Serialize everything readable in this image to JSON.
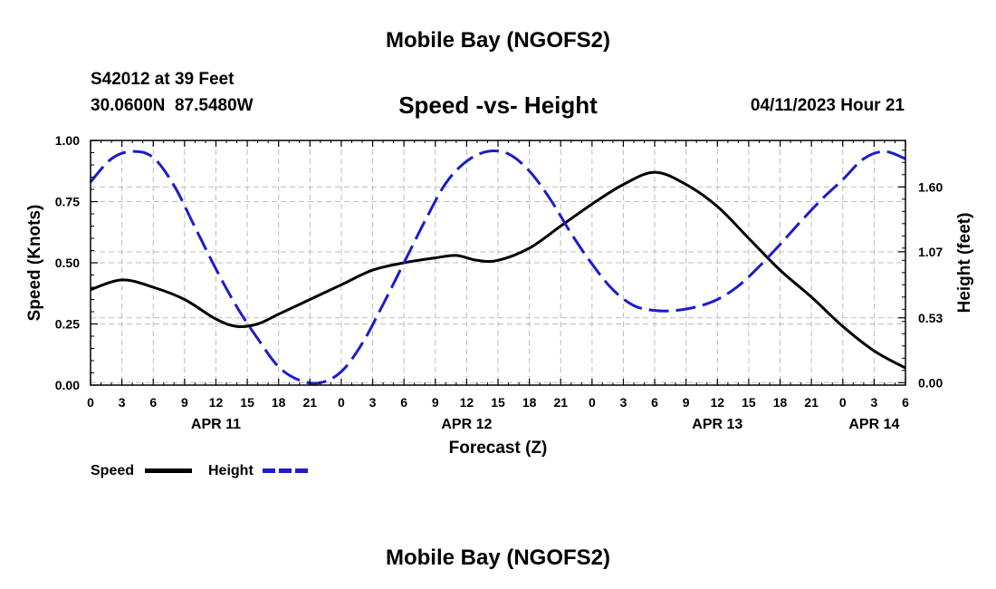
{
  "page_title": "Mobile Bay (NGOFS2)",
  "footer_title": "Mobile Bay (NGOFS2)",
  "station": {
    "name": "S42012 at 39 Feet",
    "coords": "30.0600N  87.5480W"
  },
  "forecast_time": "04/11/2023 Hour 21",
  "chart_data": {
    "type": "line",
    "title": "Speed -vs- Height",
    "xlabel": "Forecast (Z)",
    "ylabel": "Speed (Knots)",
    "y2label": "Height (feet)",
    "x_unit": "hours since APR 11 00Z",
    "xlim": [
      0,
      78
    ],
    "ylim": [
      0,
      1.0
    ],
    "y2lim": [
      -0.02,
      1.98
    ],
    "y_ticks": [
      "0.00",
      "0.25",
      "0.50",
      "0.75",
      "1.00"
    ],
    "y2_ticks": [
      "0.00",
      "0.53",
      "1.07",
      "1.60"
    ],
    "x_tick_labels": [
      "0",
      "3",
      "6",
      "9",
      "12",
      "15",
      "18",
      "21",
      "0",
      "3",
      "6",
      "9",
      "12",
      "15",
      "18",
      "21",
      "0",
      "3",
      "6",
      "9",
      "12",
      "15",
      "18",
      "21",
      "0",
      "3",
      "6"
    ],
    "date_labels": [
      {
        "label": "APR 11",
        "hour": 12
      },
      {
        "label": "APR 12",
        "hour": 36
      },
      {
        "label": "APR 13",
        "hour": 60
      },
      {
        "label": "APR 14",
        "hour": 75
      }
    ],
    "series": [
      {
        "name": "Speed",
        "axis": "left",
        "color": "#000000",
        "dash": "solid",
        "x": [
          0,
          3,
          6,
          9,
          12,
          14,
          16,
          18,
          21,
          24,
          27,
          30,
          33,
          35,
          37,
          39,
          42,
          45,
          48,
          51,
          54,
          57,
          60,
          63,
          66,
          69,
          72,
          75,
          78
        ],
        "values": [
          0.39,
          0.43,
          0.4,
          0.35,
          0.27,
          0.24,
          0.25,
          0.29,
          0.35,
          0.41,
          0.47,
          0.5,
          0.52,
          0.53,
          0.51,
          0.51,
          0.56,
          0.65,
          0.74,
          0.82,
          0.87,
          0.82,
          0.73,
          0.6,
          0.47,
          0.36,
          0.24,
          0.14,
          0.07
        ]
      },
      {
        "name": "Height",
        "axis": "right",
        "color": "#1c1ccc",
        "dash": "dashed",
        "x": [
          0,
          2,
          4,
          6,
          8,
          10,
          12,
          14,
          16,
          18,
          20,
          22,
          24,
          26,
          28,
          30,
          32,
          34,
          36,
          38,
          40,
          42,
          44,
          46,
          48,
          50,
          52,
          54,
          56,
          58,
          60,
          62,
          64,
          66,
          68,
          70,
          72,
          74,
          76,
          78
        ],
        "values": [
          1.64,
          1.83,
          1.89,
          1.84,
          1.61,
          1.27,
          0.93,
          0.62,
          0.36,
          0.13,
          0.02,
          0.0,
          0.09,
          0.32,
          0.64,
          0.98,
          1.32,
          1.63,
          1.81,
          1.89,
          1.87,
          1.73,
          1.5,
          1.22,
          0.97,
          0.76,
          0.63,
          0.59,
          0.59,
          0.62,
          0.68,
          0.79,
          0.95,
          1.13,
          1.32,
          1.5,
          1.66,
          1.83,
          1.89,
          1.83
        ]
      }
    ],
    "legend": [
      {
        "label": "Speed",
        "color": "#000000"
      },
      {
        "label": "Height",
        "color": "#1c1ccc"
      }
    ],
    "legend_position": "bottom-left",
    "grid": true
  }
}
